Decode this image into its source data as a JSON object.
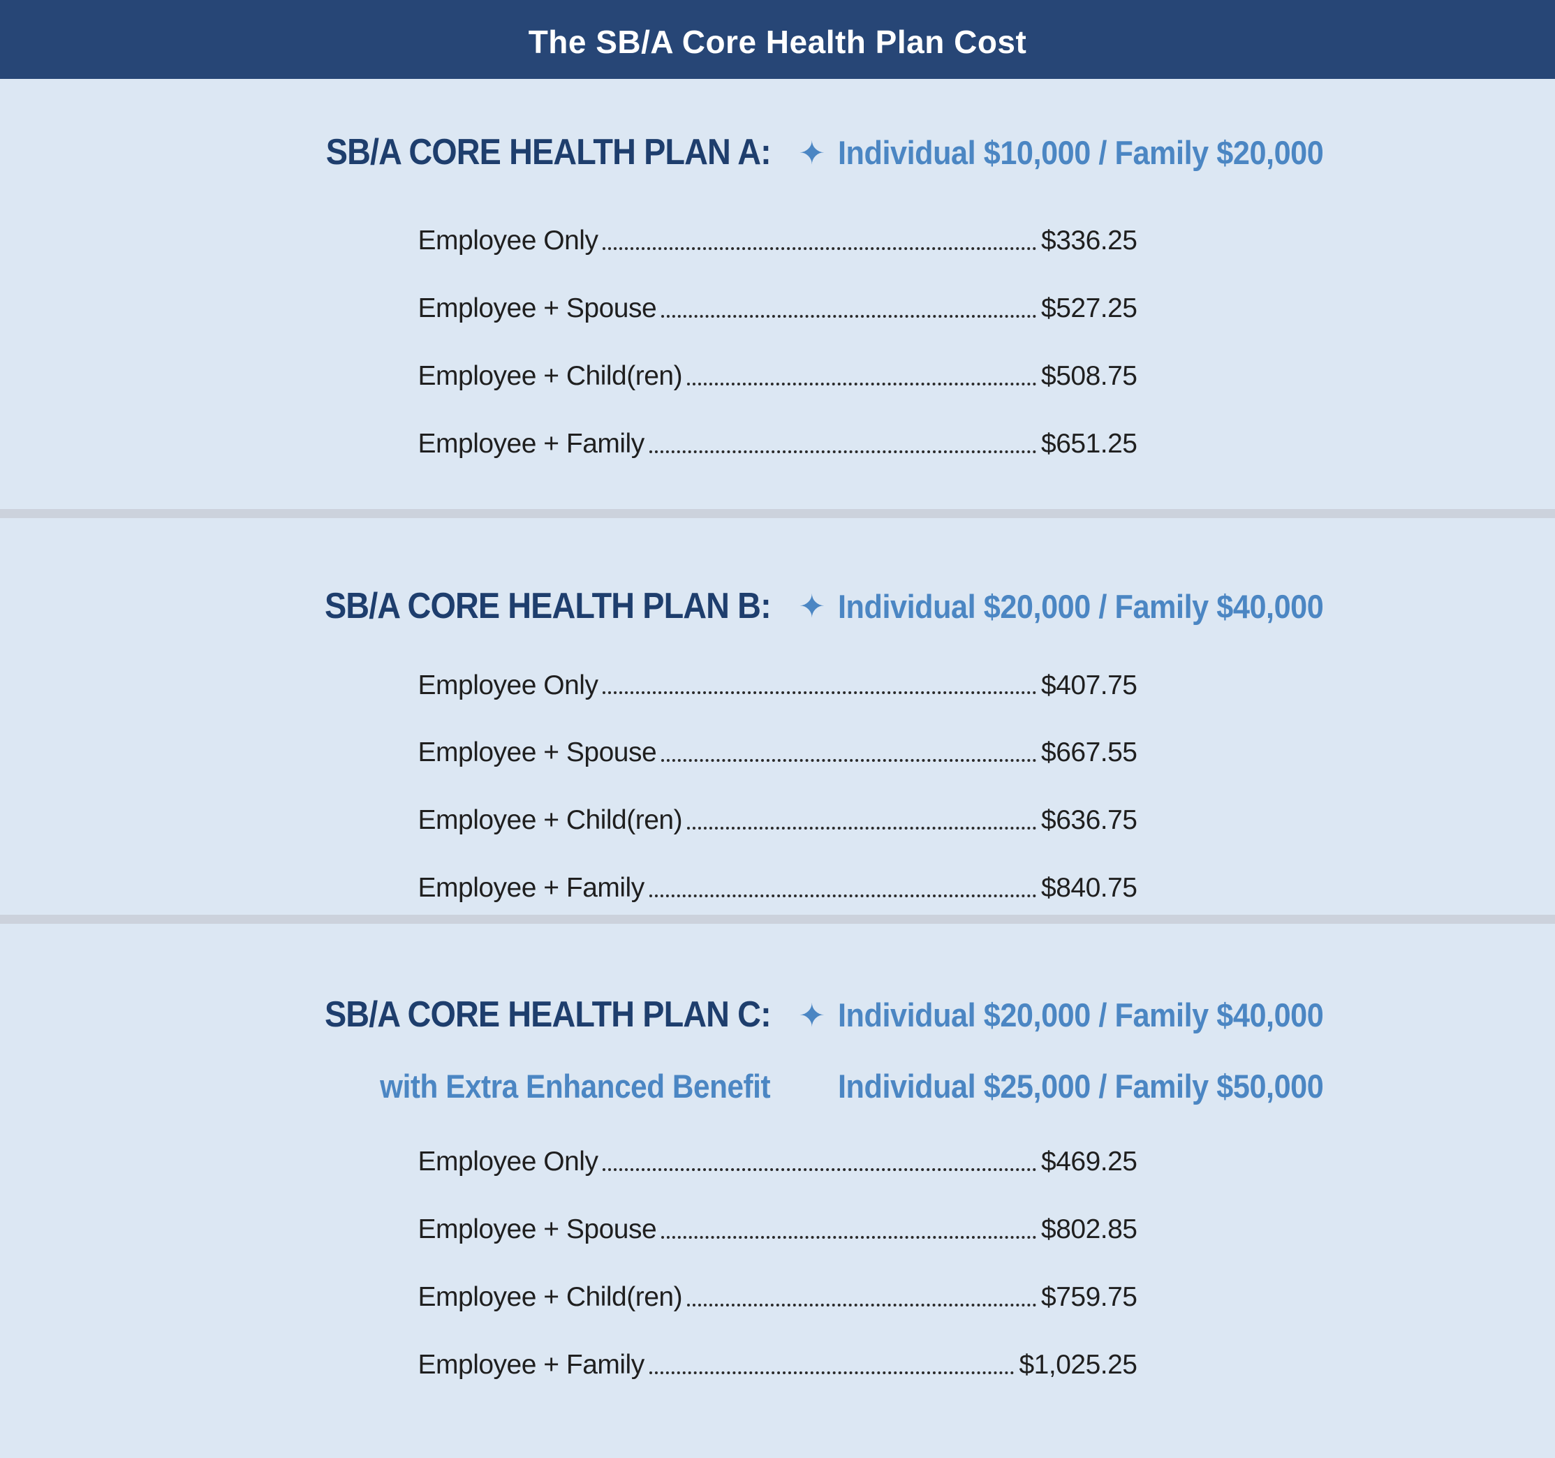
{
  "header": {
    "title": "The SB/A Core Health Plan Cost"
  },
  "glyphs": {
    "star": "✦"
  },
  "colors": {
    "header_bg": "#274676",
    "title_navy": "#1e3e6d",
    "accent_blue": "#4b86c3",
    "row_text": "#1f1f1f",
    "page_bg": "#dce7f3",
    "divider": "#ccd2dc"
  },
  "plans": [
    {
      "name": "Plan A",
      "title": "SB/A CORE HEALTH PLAN A:",
      "benefit": "Individual $10,000 / Family $20,000",
      "rows": [
        {
          "label": "Employee Only",
          "price": "$336.25"
        },
        {
          "label": "Employee + Spouse",
          "price": "$527.25"
        },
        {
          "label": "Employee + Child(ren)",
          "price": "$508.75"
        },
        {
          "label": "Employee + Family",
          "price": "$651.25"
        }
      ]
    },
    {
      "name": "Plan B",
      "title": "SB/A CORE HEALTH PLAN B:",
      "benefit": "Individual $20,000 / Family $40,000",
      "rows": [
        {
          "label": "Employee Only",
          "price": "$407.75"
        },
        {
          "label": "Employee + Spouse",
          "price": "$667.55"
        },
        {
          "label": "Employee + Child(ren)",
          "price": "$636.75"
        },
        {
          "label": "Employee + Family",
          "price": "$840.75"
        }
      ]
    },
    {
      "name": "Plan C",
      "title": "SB/A CORE HEALTH PLAN C:",
      "subtitle": "with Extra Enhanced Benefit",
      "benefit": "Individual $20,000 / Family $40,000",
      "benefit_extra": "Individual $25,000 / Family $50,000",
      "rows": [
        {
          "label": "Employee Only",
          "price": "$469.25"
        },
        {
          "label": "Employee + Spouse",
          "price": "$802.85"
        },
        {
          "label": "Employee + Child(ren)",
          "price": "$759.75"
        },
        {
          "label": "Employee + Family",
          "price": "$1,025.25"
        }
      ]
    }
  ]
}
